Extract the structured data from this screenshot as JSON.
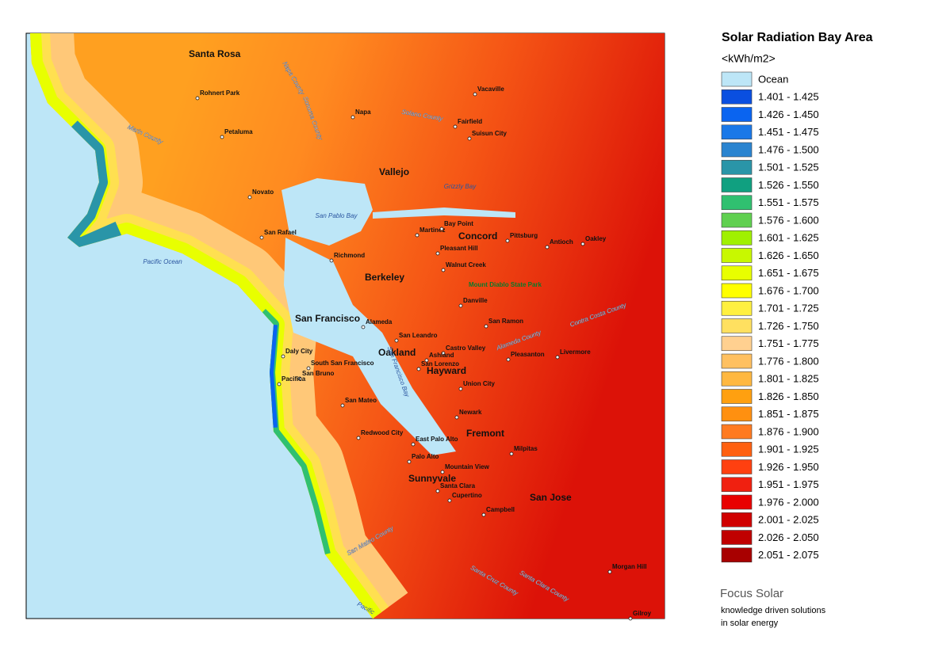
{
  "title": "Solar Radiation Bay Area",
  "unit": "<kWh/m2>",
  "legend": [
    {
      "label": "Ocean",
      "color": "#bde6f7"
    },
    {
      "label": "1.401 - 1.425",
      "color": "#0a4fe0"
    },
    {
      "label": "1.426 - 1.450",
      "color": "#0a64f0"
    },
    {
      "label": "1.451 - 1.475",
      "color": "#1a78e8"
    },
    {
      "label": "1.476 - 1.500",
      "color": "#2a84d0"
    },
    {
      "label": "1.501 - 1.525",
      "color": "#2a95a8"
    },
    {
      "label": "1.526 - 1.550",
      "color": "#10a080"
    },
    {
      "label": "1.551 - 1.575",
      "color": "#30c070"
    },
    {
      "label": "1.576 - 1.600",
      "color": "#60d050"
    },
    {
      "label": "1.601 - 1.625",
      "color": "#a0f000"
    },
    {
      "label": "1.626 - 1.650",
      "color": "#c8f800"
    },
    {
      "label": "1.651 - 1.675",
      "color": "#e8ff00"
    },
    {
      "label": "1.676 - 1.700",
      "color": "#ffff00"
    },
    {
      "label": "1.701 - 1.725",
      "color": "#fff040"
    },
    {
      "label": "1.726 - 1.750",
      "color": "#ffe060"
    },
    {
      "label": "1.751 - 1.775",
      "color": "#ffd090"
    },
    {
      "label": "1.776 - 1.800",
      "color": "#ffc060"
    },
    {
      "label": "1.801 - 1.825",
      "color": "#ffb840"
    },
    {
      "label": "1.826 - 1.850",
      "color": "#ffa010"
    },
    {
      "label": "1.851 - 1.875",
      "color": "#ff9010"
    },
    {
      "label": "1.876 - 1.900",
      "color": "#ff7a20"
    },
    {
      "label": "1.901 - 1.925",
      "color": "#ff6010"
    },
    {
      "label": "1.926 - 1.950",
      "color": "#ff4010"
    },
    {
      "label": "1.951 - 1.975",
      "color": "#f02010"
    },
    {
      "label": "1.976 - 2.000",
      "color": "#e80000"
    },
    {
      "label": "2.001 - 2.025",
      "color": "#d00000"
    },
    {
      "label": "2.026 - 2.050",
      "color": "#c00000"
    },
    {
      "label": "2.051 - 2.075",
      "color": "#a80000"
    }
  ],
  "cities": [
    "Santa Rosa",
    "Rohnert Park",
    "Petaluma",
    "Napa",
    "Vacaville",
    "Fairfield",
    "Suisun City",
    "Vallejo",
    "Novato",
    "San Rafael",
    "Richmond",
    "Berkeley",
    "Martinez",
    "Bay Point",
    "Concord",
    "Pittsburg",
    "Antioch",
    "Oakley",
    "Pleasant Hill",
    "Walnut Creek",
    "Danville",
    "San Ramon",
    "San Francisco",
    "Alameda",
    "Oakland",
    "San Leandro",
    "Castro Valley",
    "Ashland",
    "San Lorenzo",
    "Hayward",
    "Daly City",
    "South San Francisco",
    "San Bruno",
    "Pacifica",
    "San Mateo",
    "Redwood City",
    "East Palo Alto",
    "Palo Alto",
    "Fremont",
    "Newark",
    "Union City",
    "Milpitas",
    "Mountain View",
    "Sunnyvale",
    "Santa Clara",
    "Cupertino",
    "San Jose",
    "Campbell",
    "Pleasanton",
    "Livermore",
    "Morgan Hill",
    "Gilroy"
  ],
  "water_labels": [
    "San Pablo Bay",
    "Grizzly Bay",
    "Pacific Ocean",
    "San Francisco Bay",
    "Pacific"
  ],
  "regions": [
    "Marin County",
    "Napa County",
    "Sonoma County",
    "Solano County",
    "Contra Costa County",
    "Alameda County",
    "San Mateo County",
    "Santa Clara County",
    "Santa Cruz County",
    "Mount Diablo State Park"
  ],
  "footer": {
    "brand": "Focus Solar",
    "line1": "knowledge driven solutions",
    "line2": "in solar energy"
  }
}
